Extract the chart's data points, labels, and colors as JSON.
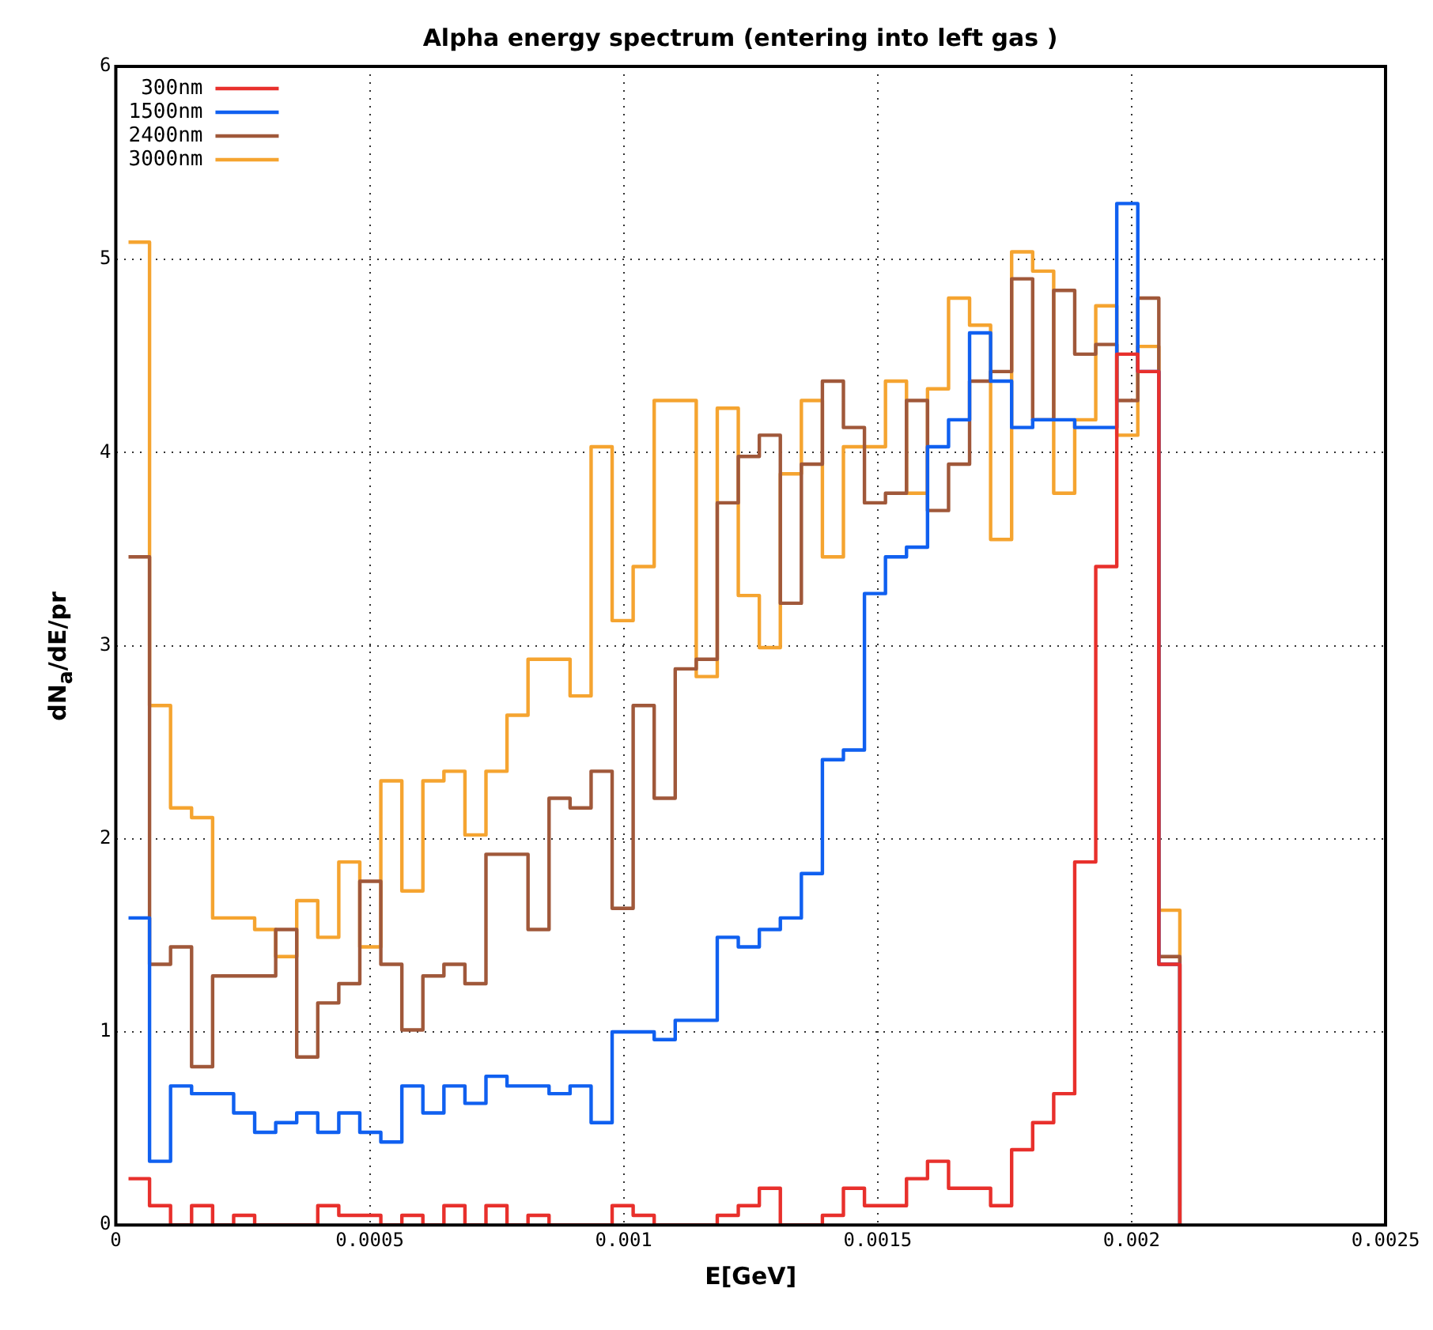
{
  "chart_data": {
    "type": "histogram",
    "title": "Alpha energy spectrum (entering into left gas )",
    "xlabel": "E[GeV]",
    "ylabel": "dN$_{a}$/dE/pr",
    "bins": [
      2.5e-05,
      6.64e-05,
      0.0001078,
      0.0001492,
      0.0001906,
      0.000232,
      0.0002734,
      0.0003148,
      0.0003562,
      0.0003976,
      0.000439,
      0.0004804,
      0.0005218,
      0.0005632,
      0.0006046,
      0.000646,
      0.0006874,
      0.0007288,
      0.0007702,
      0.0008116,
      0.000853,
      0.0008944,
      0.0009358,
      0.0009772,
      0.0010186,
      0.00106,
      0.0011014,
      0.0011428,
      0.0011842,
      0.0012256,
      0.001267,
      0.0013084,
      0.0013498,
      0.0013912,
      0.0014326,
      0.001474,
      0.0015154,
      0.0015568,
      0.0015982,
      0.0016396,
      0.001681,
      0.0017224,
      0.0017638,
      0.0018052,
      0.0018466,
      0.001888,
      0.0019294,
      0.0019708,
      0.0020122,
      0.0020536,
      0.002095
    ],
    "series": [
      {
        "name": "300nm",
        "color": "#e8302c",
        "values": [
          0.24,
          0.1,
          0,
          0.1,
          0,
          0.05,
          0,
          0,
          0,
          0.1,
          0.05,
          0.05,
          0,
          0.05,
          0,
          0.1,
          0,
          0.1,
          0,
          0.05,
          0,
          0,
          0,
          0.1,
          0.05,
          0,
          0,
          0,
          0.05,
          0.1,
          0.19,
          0,
          0,
          0.05,
          0.19,
          0.1,
          0.1,
          0.24,
          0.33,
          0.19,
          0.19,
          0.1,
          0.39,
          0.53,
          0.68,
          1.88,
          3.41,
          4.51,
          4.42,
          1.35
        ]
      },
      {
        "name": "1500nm",
        "color": "#1060f0",
        "values": [
          1.59,
          0.33,
          0.72,
          0.68,
          0.68,
          0.58,
          0.48,
          0.53,
          0.58,
          0.48,
          0.58,
          0.48,
          0.43,
          0.72,
          0.58,
          0.72,
          0.63,
          0.77,
          0.72,
          0.72,
          0.68,
          0.72,
          0.53,
          1.0,
          1.0,
          0.96,
          1.06,
          1.06,
          1.49,
          1.44,
          1.53,
          1.59,
          1.82,
          2.41,
          2.46,
          3.27,
          3.46,
          3.51,
          4.03,
          4.17,
          4.62,
          4.37,
          4.13,
          4.17,
          4.17,
          4.13,
          4.13,
          5.29,
          4.42,
          1.35
        ]
      },
      {
        "name": "2400nm",
        "color": "#a0583a",
        "values": [
          3.46,
          1.35,
          1.44,
          0.82,
          1.29,
          1.29,
          1.29,
          1.53,
          0.87,
          1.15,
          1.25,
          1.78,
          1.35,
          1.01,
          1.29,
          1.35,
          1.25,
          1.92,
          1.92,
          1.53,
          2.21,
          2.16,
          2.35,
          1.64,
          2.69,
          2.21,
          2.88,
          2.93,
          3.74,
          3.98,
          4.09,
          3.22,
          3.94,
          4.37,
          4.13,
          3.74,
          3.79,
          4.27,
          3.7,
          3.94,
          4.37,
          4.42,
          4.9,
          4.17,
          4.84,
          4.51,
          4.56,
          4.27,
          4.8,
          1.39
        ]
      },
      {
        "name": "3000nm",
        "color": "#f5a430",
        "values": [
          5.09,
          2.69,
          2.16,
          2.11,
          1.59,
          1.59,
          1.53,
          1.39,
          1.68,
          1.49,
          1.88,
          1.44,
          2.3,
          1.73,
          2.3,
          2.35,
          2.02,
          2.35,
          2.64,
          2.93,
          2.93,
          2.74,
          4.03,
          3.13,
          3.41,
          4.27,
          4.27,
          2.84,
          4.23,
          3.26,
          2.99,
          3.89,
          4.27,
          3.46,
          4.03,
          4.03,
          4.37,
          3.79,
          4.33,
          4.8,
          4.66,
          3.55,
          5.04,
          4.94,
          3.79,
          4.17,
          4.76,
          4.09,
          4.55,
          1.63
        ]
      }
    ],
    "xlim": [
      0,
      0.0025
    ],
    "xticks": [
      0,
      0.0005,
      0.001,
      0.0015,
      0.002,
      0.0025
    ],
    "ylim": [
      0,
      6
    ],
    "yticks": [
      0,
      1,
      2,
      3,
      4,
      5,
      6
    ],
    "grid": true,
    "legend": "top left",
    "line_style": "solid"
  }
}
